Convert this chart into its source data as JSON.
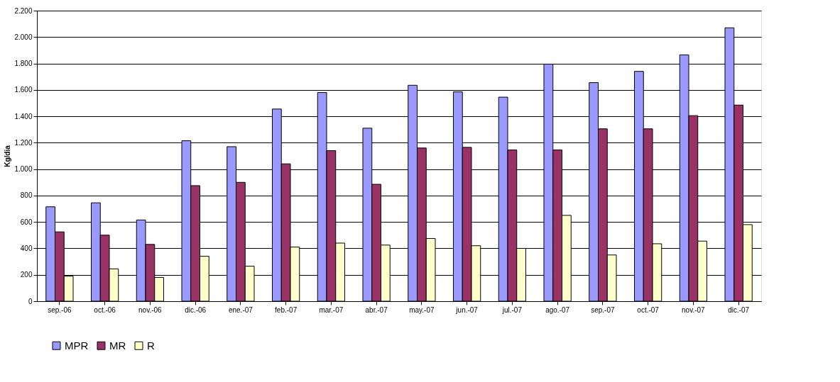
{
  "chart_data": {
    "type": "bar",
    "ylabel": "Kg/dia",
    "categories": [
      "sep.-06",
      "oct.-06",
      "nov.-06",
      "dic.-06",
      "ene.-07",
      "feb.-07",
      "mar.-07",
      "abr.-07",
      "may.-07",
      "jun.-07",
      "jul.-07",
      "ago.-07",
      "sep.-07",
      "oct.-07",
      "nov.-07",
      "dic.-07"
    ],
    "series": [
      {
        "name": "MPR",
        "color": "#9999ff",
        "values": [
          715,
          745,
          615,
          1215,
          1170,
          1455,
          1580,
          1310,
          1635,
          1585,
          1545,
          1795,
          1655,
          1740,
          1865,
          2070
        ]
      },
      {
        "name": "MR",
        "color": "#993366",
        "values": [
          525,
          500,
          430,
          875,
          900,
          1040,
          1140,
          885,
          1160,
          1165,
          1145,
          1145,
          1305,
          1305,
          1405,
          1485
        ]
      },
      {
        "name": "R",
        "color": "#ffffcc",
        "values": [
          190,
          245,
          180,
          340,
          265,
          410,
          440,
          425,
          475,
          420,
          400,
          650,
          350,
          435,
          455,
          580
        ]
      }
    ],
    "ylim": [
      0,
      2200
    ],
    "yticks": [
      0,
      200,
      400,
      600,
      800,
      {
        "value": 1000,
        "label": "1.000"
      },
      {
        "value": 1200,
        "label": "1.200"
      },
      {
        "value": 1400,
        "label": "1.400"
      },
      {
        "value": 1600,
        "label": "1.600"
      },
      {
        "value": 1800,
        "label": "1.800"
      },
      {
        "value": 2000,
        "label": "2.000"
      },
      {
        "value": 2200,
        "label": "2.200"
      }
    ],
    "grid": "y",
    "legend": "bottom"
  }
}
